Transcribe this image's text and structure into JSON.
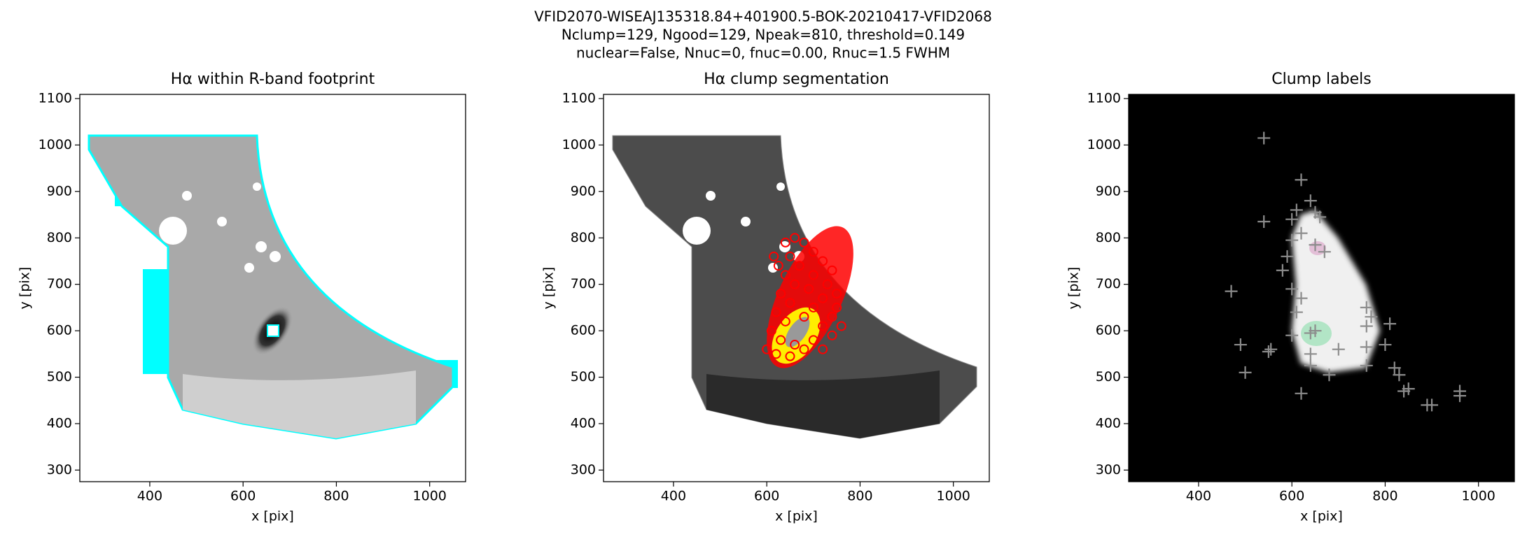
{
  "figure": {
    "title": [
      "VFID2070-WISEAJ135318.84+401900.5-BOK-20210417-VFID2068",
      "Nclump=129, Ngood=129, Npeak=810, threshold=0.149",
      "nuclear=False, Nnuc=0, fnuc=0.00, Rnuc=1.5 FWHM"
    ]
  },
  "chart_data": [
    {
      "type": "image",
      "title": "Hα within R-band footprint",
      "xlabel": "x [pix]",
      "ylabel": "y [pix]",
      "xlim": [
        250,
        1077
      ],
      "ylim": [
        275,
        1109
      ],
      "xticks": [
        400,
        600,
        800,
        1000
      ],
      "yticks": [
        300,
        400,
        500,
        600,
        700,
        800,
        900,
        1000,
        1100
      ]
    },
    {
      "type": "image",
      "title": "Hα clump segmentation",
      "xlabel": "x [pix]",
      "ylabel": "y [pix]",
      "xlim": [
        250,
        1077
      ],
      "ylim": [
        275,
        1109
      ],
      "xticks": [
        400,
        600,
        800,
        1000
      ],
      "yticks": [
        300,
        400,
        500,
        600,
        700,
        800,
        900,
        1000,
        1100
      ],
      "overlay": {
        "marker": "o",
        "color": "#ff0000",
        "x": [
          640,
          660,
          680,
          700,
          720,
          740,
          650,
          670,
          700,
          730,
          750,
          640,
          660,
          690,
          720,
          750,
          630,
          650,
          700,
          740,
          760,
          620,
          640,
          680,
          720,
          740,
          610,
          630,
          660,
          700,
          720,
          600,
          620,
          650,
          680,
          625,
          615
        ],
        "y": [
          790,
          800,
          790,
          770,
          750,
          730,
          760,
          740,
          720,
          700,
          680,
          720,
          700,
          690,
          670,
          650,
          680,
          660,
          650,
          630,
          610,
          640,
          620,
          630,
          610,
          590,
          600,
          580,
          570,
          580,
          560,
          560,
          550,
          545,
          560,
          740,
          760
        ]
      }
    },
    {
      "type": "image",
      "title": "Clump labels",
      "xlabel": "x [pix]",
      "ylabel": "y [pix]",
      "xlim": [
        250,
        1077
      ],
      "ylim": [
        275,
        1109
      ],
      "xticks": [
        400,
        600,
        800,
        1000
      ],
      "yticks": [
        300,
        400,
        500,
        600,
        700,
        800,
        900,
        1000,
        1100
      ],
      "overlay": {
        "marker": "+",
        "color": "#8c8c8c",
        "x": [
          540,
          620,
          640,
          610,
          650,
          660,
          600,
          540,
          620,
          600,
          650,
          590,
          670,
          580,
          470,
          600,
          620,
          610,
          760,
          770,
          760,
          810,
          650,
          600,
          490,
          550,
          555,
          640,
          700,
          760,
          800,
          640,
          760,
          820,
          830,
          680,
          500,
          620,
          840,
          850,
          900,
          890,
          960,
          960,
          640
        ],
        "y": [
          1015,
          925,
          880,
          860,
          855,
          845,
          840,
          835,
          810,
          795,
          785,
          760,
          770,
          730,
          685,
          690,
          670,
          640,
          650,
          630,
          610,
          615,
          600,
          590,
          570,
          555,
          560,
          550,
          560,
          565,
          570,
          525,
          525,
          520,
          505,
          505,
          510,
          465,
          470,
          475,
          440,
          440,
          470,
          460,
          595
        ]
      }
    }
  ]
}
